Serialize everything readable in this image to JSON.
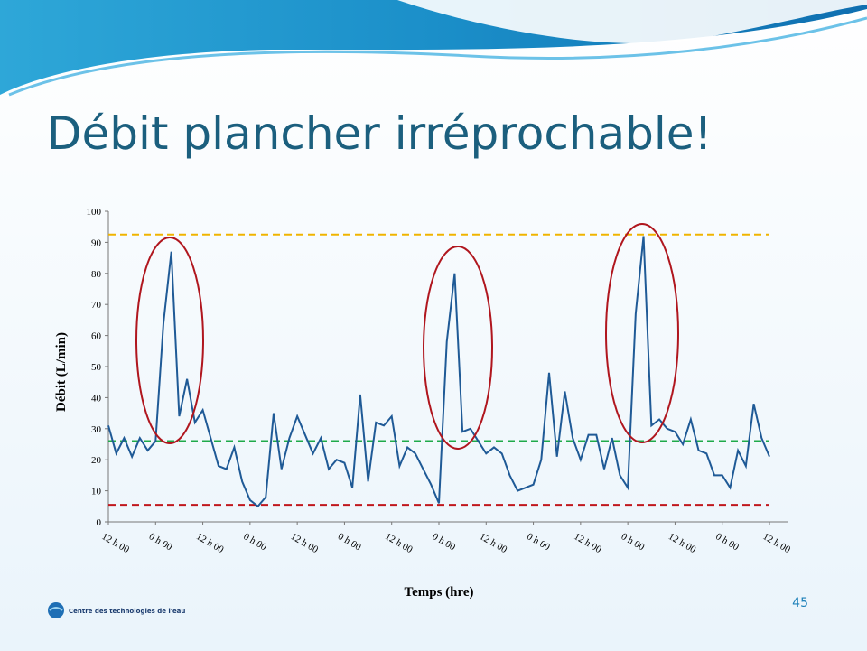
{
  "slide": {
    "title": "Débit plancher irréprochable!",
    "page_number": "45",
    "logo_text": "Centre des technologies de l'eau"
  },
  "chart_data": {
    "type": "line",
    "ylabel": "Débit (L/min)",
    "xlabel": "Temps (hre)",
    "x": [
      0,
      2,
      4,
      6,
      8,
      10,
      12,
      14,
      16,
      18,
      20,
      22,
      24,
      26,
      28,
      30,
      32,
      34,
      36,
      38,
      40,
      42,
      44,
      46,
      48,
      50,
      52,
      54,
      56,
      58,
      60,
      62,
      64,
      66,
      68,
      70,
      72,
      74,
      76,
      78,
      80,
      82,
      84,
      86,
      88,
      90,
      92,
      94,
      96,
      98,
      100,
      102,
      104,
      106,
      108,
      110,
      112,
      114,
      116,
      118,
      120,
      122,
      124,
      126,
      128,
      130,
      132,
      134,
      136,
      138,
      140,
      142,
      144,
      146,
      148,
      150,
      152,
      154,
      156,
      158,
      160,
      162,
      164,
      166,
      168
    ],
    "series": [
      {
        "name": "Débit",
        "color": "#1f5a96",
        "values": [
          31,
          22,
          27,
          21,
          27,
          23,
          26,
          64,
          87,
          34,
          46,
          32,
          36,
          27,
          18,
          17,
          24,
          13,
          7,
          5,
          8,
          35,
          17,
          27,
          34,
          28,
          22,
          27,
          17,
          20,
          19,
          11,
          41,
          13,
          32,
          31,
          34,
          18,
          24,
          22,
          17,
          12,
          6,
          58,
          80,
          29,
          30,
          26,
          22,
          24,
          22,
          15,
          10,
          11,
          12,
          20,
          48,
          21,
          42,
          27,
          20,
          28,
          28,
          17,
          27,
          15,
          11,
          67,
          92,
          31,
          33,
          30,
          29,
          25,
          33,
          23,
          22,
          15,
          15,
          11,
          23,
          18,
          38,
          27,
          21
        ]
      }
    ],
    "reference_lines": [
      {
        "value": 92.5,
        "color": "#f0b400"
      },
      {
        "value": 26,
        "color": "#1faa4a"
      },
      {
        "value": 5.5,
        "color": "#c0171d"
      }
    ],
    "xlim": [
      0,
      168
    ],
    "xticks": [
      {
        "value": 0,
        "label": "12 h 00"
      },
      {
        "value": 12,
        "label": "0 h 00"
      },
      {
        "value": 24,
        "label": "12 h 00"
      },
      {
        "value": 36,
        "label": "0 h 00"
      },
      {
        "value": 48,
        "label": "12 h 00"
      },
      {
        "value": 60,
        "label": "0 h 00"
      },
      {
        "value": 72,
        "label": "12 h 00"
      },
      {
        "value": 84,
        "label": "0 h 00"
      },
      {
        "value": 96,
        "label": "12 h 00"
      },
      {
        "value": 108,
        "label": "0 h 00"
      },
      {
        "value": 120,
        "label": "12 h 00"
      },
      {
        "value": 132,
        "label": "0 h 00"
      },
      {
        "value": 144,
        "label": "12 h 00"
      },
      {
        "value": 156,
        "label": "0 h 00"
      },
      {
        "value": 168,
        "label": "12 h 00"
      }
    ],
    "ylim": [
      0,
      100
    ],
    "yticks": [
      0,
      10,
      20,
      30,
      40,
      50,
      60,
      70,
      80,
      90,
      100
    ]
  }
}
